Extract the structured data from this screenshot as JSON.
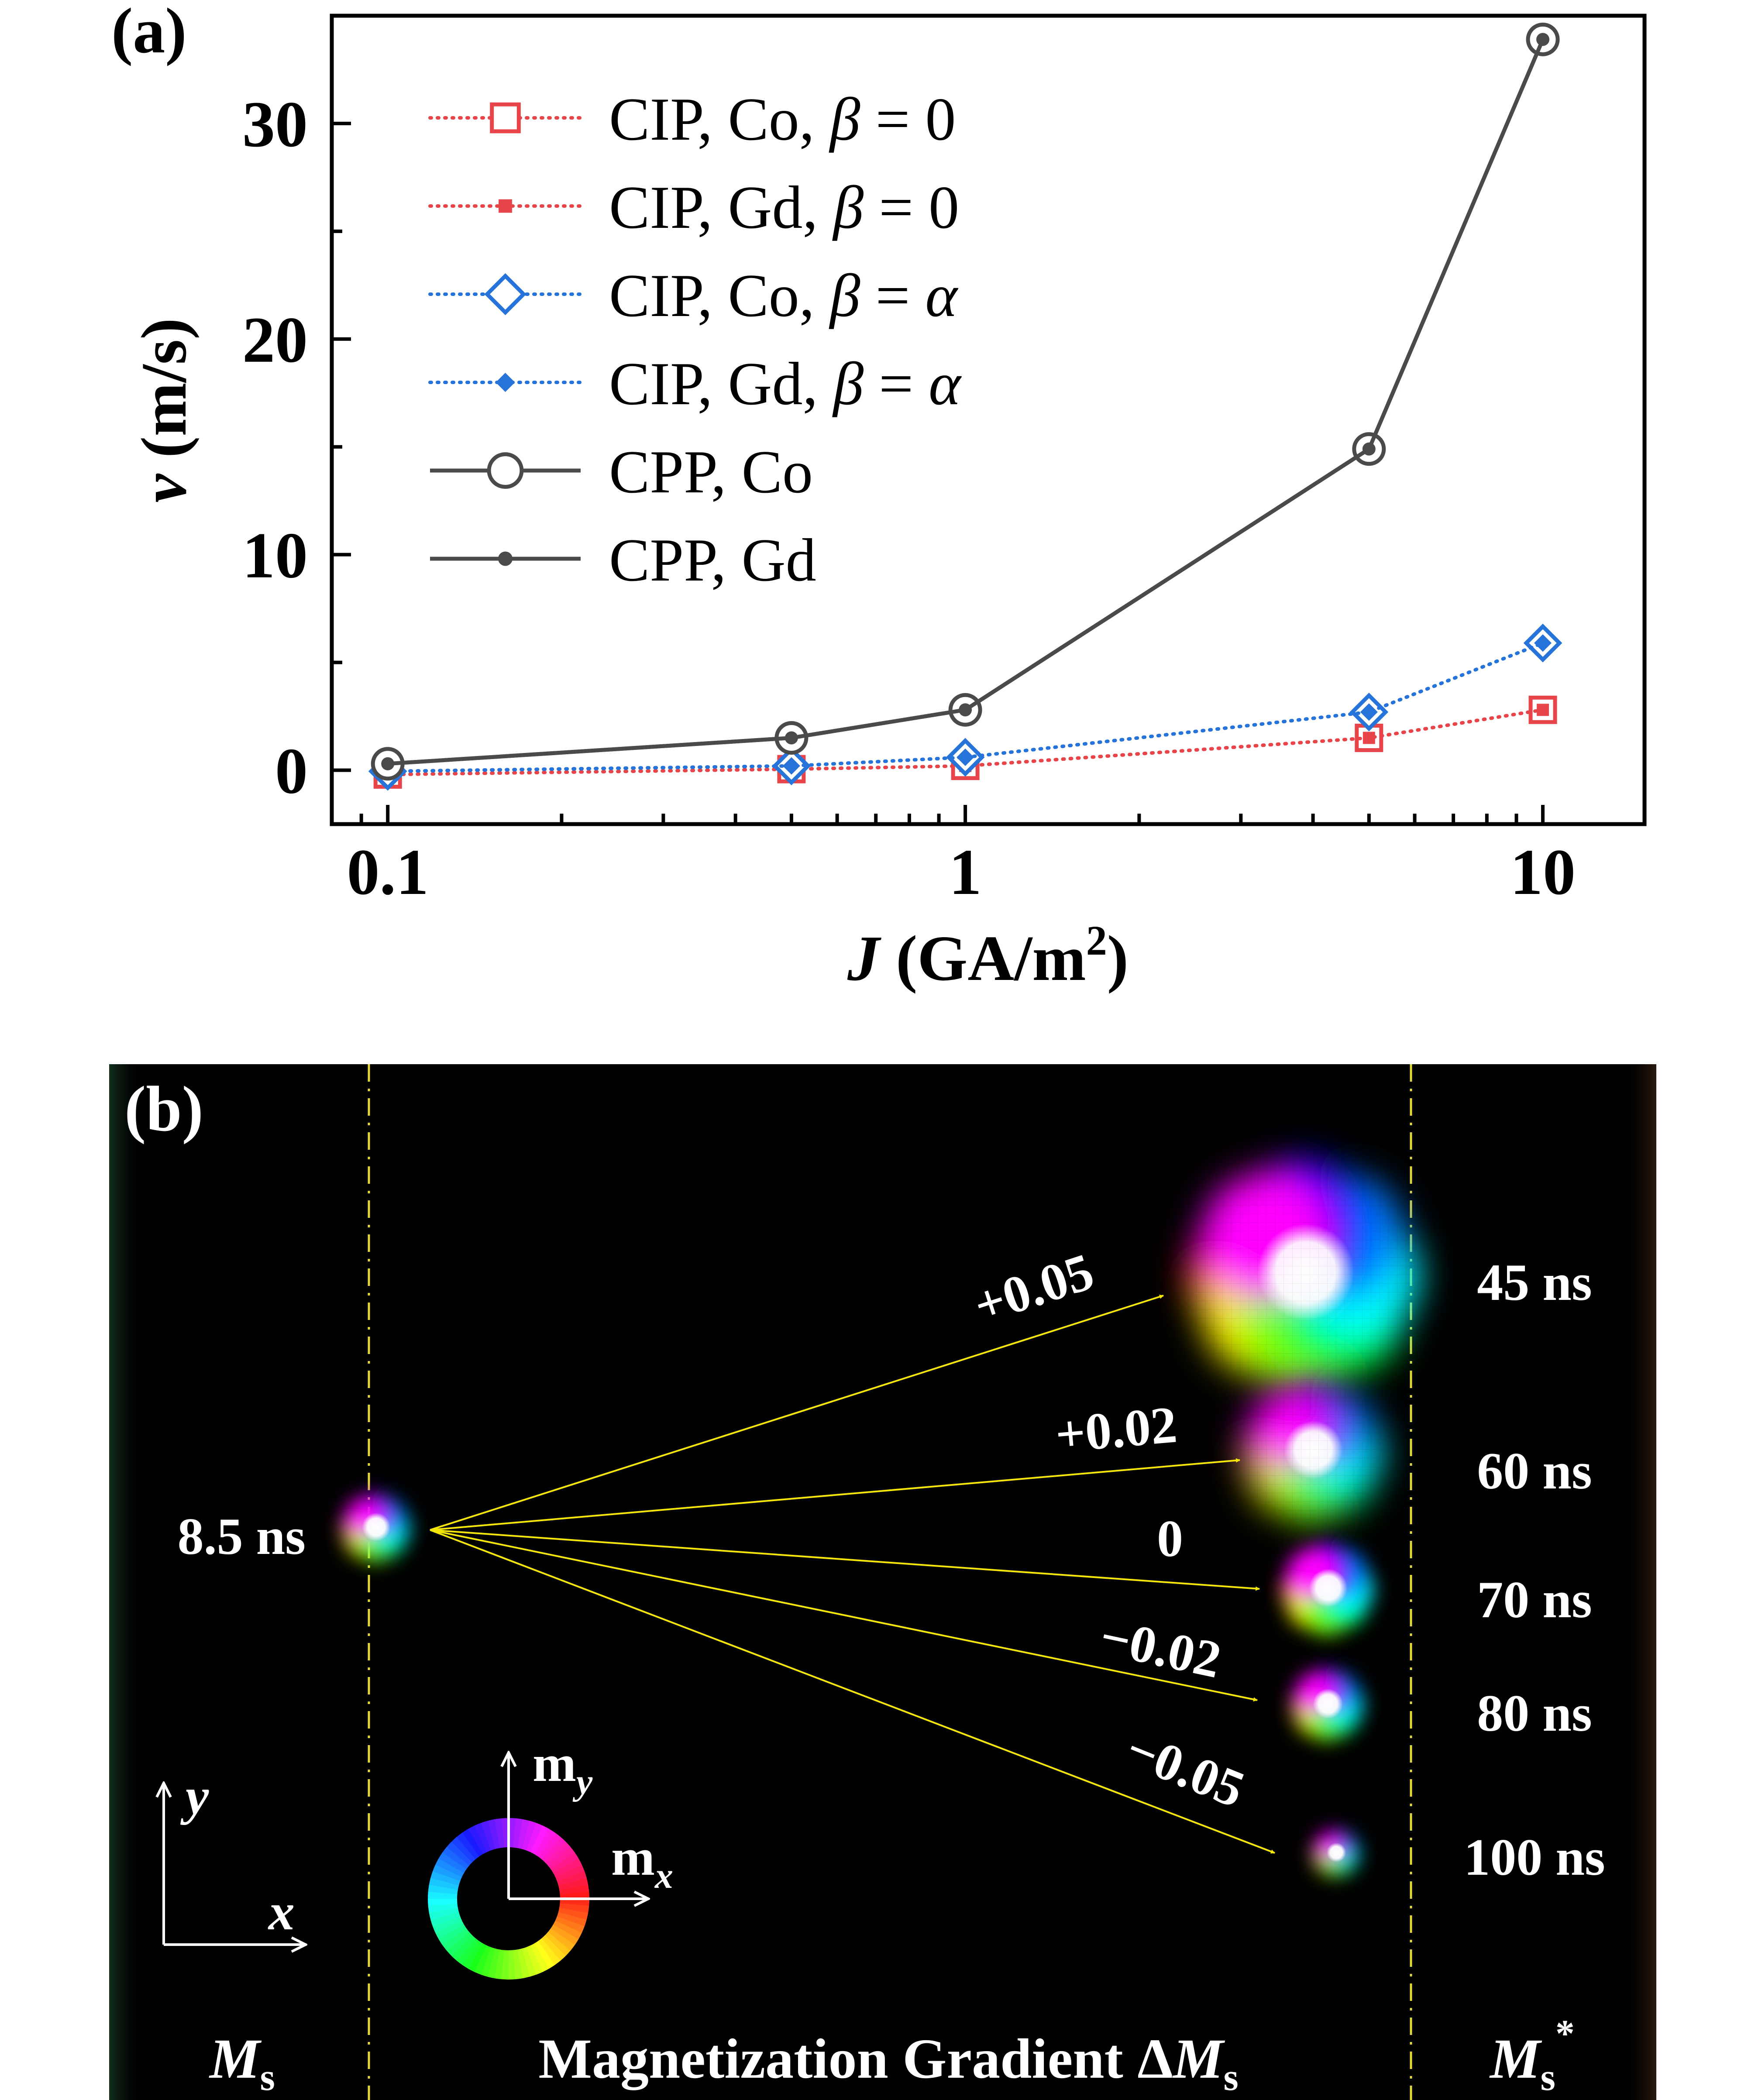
{
  "panel_a": {
    "label": "(a)",
    "chart_data": {
      "type": "line",
      "x_scale": "log",
      "xlim": [
        0.08,
        15
      ],
      "ylim": [
        -2.5,
        35
      ],
      "xticks": [
        0.1,
        1,
        10
      ],
      "xtick_labels": [
        "0.1",
        "1",
        "10"
      ],
      "yticks": [
        0,
        10,
        20,
        30
      ],
      "ytick_labels": [
        "0",
        "10",
        "20",
        "30"
      ],
      "xlabel_var": "J",
      "xlabel_unit_pre": " (GA/m",
      "xlabel_sup": "2",
      "xlabel_unit_post": ")",
      "ylabel_var": "v",
      "ylabel_unit": " (m/s)",
      "x": [
        0.1,
        0.5,
        1,
        5,
        10
      ],
      "series": [
        {
          "name": "CIP,  Co,  β = 0",
          "lead": "CIP,  Co,  ",
          "greek": "β",
          "rest": " = 0",
          "restItalic": false,
          "color": "#e8454a",
          "dash": "dotted",
          "marker": "square-open",
          "values": [
            -0.2,
            0.05,
            0.2,
            1.5,
            2.8
          ]
        },
        {
          "name": "CIP,  Gd,  β = 0",
          "lead": "CIP,  Gd,  ",
          "greek": "β",
          "rest": " = 0",
          "restItalic": false,
          "color": "#e8454a",
          "dash": "dotted",
          "marker": "square-filled",
          "values": [
            -0.2,
            0.05,
            0.2,
            1.5,
            2.8
          ]
        },
        {
          "name": "CIP,  Co,  β = α",
          "lead": "CIP,  Co,  ",
          "greek": "β",
          "rest": " = α",
          "restItalic": true,
          "color": "#2673d9",
          "dash": "dotted",
          "marker": "diamond-open",
          "values": [
            -0.05,
            0.2,
            0.6,
            2.7,
            5.9
          ]
        },
        {
          "name": "CIP,  Gd,  β = α",
          "lead": "CIP,  Gd,  ",
          "greek": "β",
          "rest": " = α",
          "restItalic": true,
          "color": "#2673d9",
          "dash": "dotted",
          "marker": "diamond-filled",
          "values": [
            -0.05,
            0.2,
            0.6,
            2.7,
            5.9
          ]
        },
        {
          "name": "CPP,  Co",
          "lead": "CPP,  Co",
          "greek": "",
          "rest": "",
          "restItalic": false,
          "color": "#4a4a4a",
          "dash": "solid",
          "marker": "circle-open",
          "values": [
            0.3,
            1.5,
            2.8,
            14.9,
            33.9
          ]
        },
        {
          "name": "CPP,  Gd",
          "lead": "CPP,  Gd",
          "greek": "",
          "rest": "",
          "restItalic": false,
          "color": "#4a4a4a",
          "dash": "solid",
          "marker": "circle-filled",
          "values": [
            0.3,
            1.5,
            2.8,
            14.9,
            33.9
          ]
        }
      ],
      "legend_position": "top-left"
    }
  },
  "panel_b": {
    "label": "(b)",
    "initial_time": "8.5 ns",
    "gradients": [
      "+0.05",
      "+0.02",
      "0",
      "−0.02",
      "−0.05"
    ],
    "times": [
      "45 ns",
      "60 ns",
      "70 ns",
      "80 ns",
      "100 ns"
    ],
    "axis_y": "y",
    "axis_x": "x",
    "wheel_my_base": "m",
    "wheel_my_sub": "y",
    "wheel_mx_base": "m",
    "wheel_mx_sub": "x",
    "bottom_left_base": "M",
    "bottom_left_sub": "s",
    "bottom_center_text": "Magnetization  Gradient Δ",
    "bottom_center_base": "M",
    "bottom_center_sub": "s",
    "bottom_right_base": "M",
    "bottom_right_sub": "s",
    "bottom_right_sup": "*"
  }
}
